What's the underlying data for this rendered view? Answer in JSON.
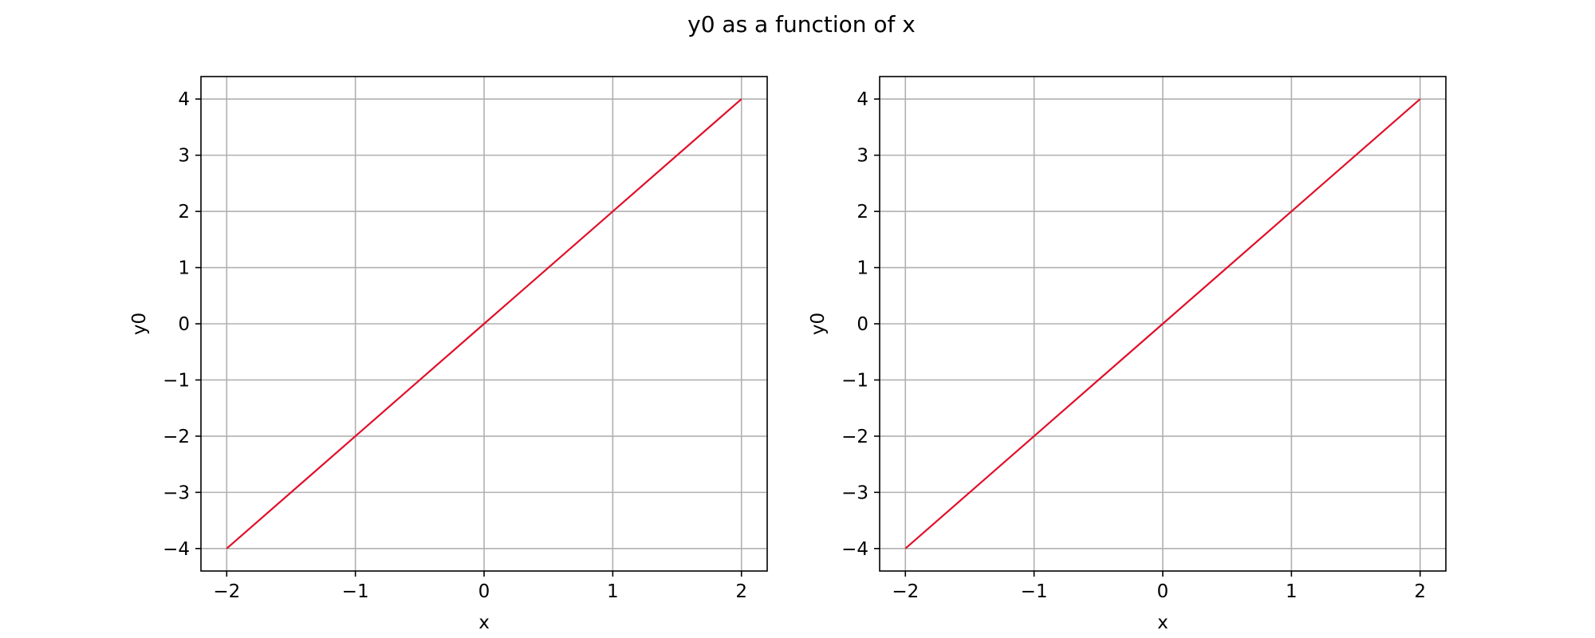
{
  "figure": {
    "suptitle": "y0 as a function of x"
  },
  "colors": {
    "line": "#e0102a",
    "grid": "#b0b0b0",
    "axes": "#000000",
    "background": "#ffffff"
  },
  "chart_data": [
    {
      "type": "line",
      "title": "",
      "xlabel": "x",
      "ylabel": "y0",
      "xlim": [
        -2.2,
        2.2
      ],
      "ylim": [
        -4.4,
        4.4
      ],
      "grid": true,
      "x_ticks": [
        -2,
        -1,
        0,
        1,
        2
      ],
      "y_ticks": [
        -4,
        -3,
        -2,
        -1,
        0,
        1,
        2,
        3,
        4
      ],
      "series": [
        {
          "x": [
            -2,
            -1,
            0,
            1,
            2
          ],
          "values": [
            -4,
            -2,
            0,
            2,
            4
          ]
        }
      ]
    },
    {
      "type": "line",
      "title": "",
      "xlabel": "x",
      "ylabel": "y0",
      "xlim": [
        -2.2,
        2.2
      ],
      "ylim": [
        -4.4,
        4.4
      ],
      "grid": true,
      "x_ticks": [
        -2,
        -1,
        0,
        1,
        2
      ],
      "y_ticks": [
        -4,
        -3,
        -2,
        -1,
        0,
        1,
        2,
        3,
        4
      ],
      "series": [
        {
          "x": [
            -2,
            -1,
            0,
            1,
            2
          ],
          "values": [
            -4,
            -2,
            0,
            2,
            4
          ]
        }
      ]
    }
  ]
}
